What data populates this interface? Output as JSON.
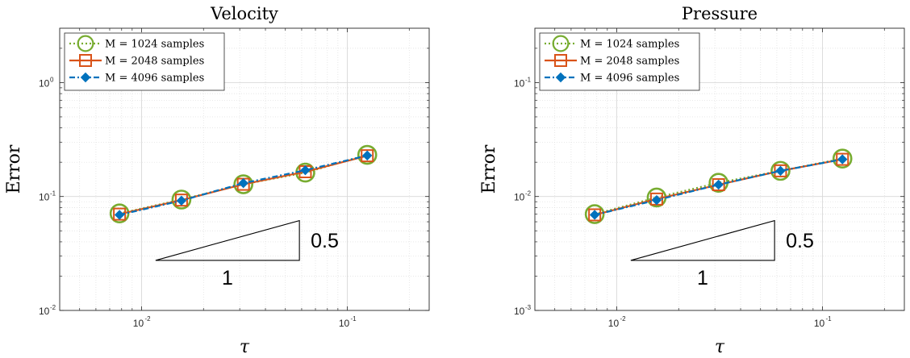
{
  "chart_data": [
    {
      "type": "line",
      "title": "Velocity",
      "xlabel": "τ",
      "ylabel": "Error",
      "xscale": "log",
      "yscale": "log",
      "xlim": [
        0.004,
        0.25
      ],
      "ylim": [
        0.01,
        3
      ],
      "grid": true,
      "legend_position": "top-left",
      "x": [
        0.0078125,
        0.015625,
        0.03125,
        0.0625,
        0.125
      ],
      "series": [
        {
          "name": "M = 1024 samples",
          "color": "#77AC30",
          "linestyle": "dotted",
          "marker": "circle",
          "values": [
            0.071,
            0.094,
            0.128,
            0.162,
            0.232
          ]
        },
        {
          "name": "M = 2048 samples",
          "color": "#D95319",
          "linestyle": "solid",
          "marker": "square",
          "values": [
            0.07,
            0.093,
            0.128,
            0.165,
            0.228
          ]
        },
        {
          "name": "M = 4096 samples",
          "color": "#0072BD",
          "linestyle": "dashdot",
          "marker": "diamond",
          "values": [
            0.069,
            0.092,
            0.131,
            0.17,
            0.229
          ]
        }
      ],
      "xticks": {
        "values": [
          0.01,
          0.1
        ],
        "labels": [
          {
            "base": "10",
            "exp": "-2"
          },
          {
            "base": "10",
            "exp": "-1"
          }
        ]
      },
      "yticks": {
        "values": [
          0.01,
          0.1,
          1
        ],
        "labels": [
          {
            "base": "10",
            "exp": "-2"
          },
          {
            "base": "10",
            "exp": "-1"
          },
          {
            "base": "10",
            "exp": "0"
          }
        ]
      },
      "slope_triangle": {
        "x0": 0.0117,
        "x1": 0.0585,
        "y_base": 0.0275,
        "y_top": 0.0615,
        "run_label": "1",
        "rise_label": "0.5"
      }
    },
    {
      "type": "line",
      "title": "Pressure",
      "xlabel": "τ",
      "ylabel": "Error",
      "xscale": "log",
      "yscale": "log",
      "xlim": [
        0.004,
        0.25
      ],
      "ylim": [
        0.001,
        0.3
      ],
      "grid": true,
      "legend_position": "top-left",
      "x": [
        0.0078125,
        0.015625,
        0.03125,
        0.0625,
        0.125
      ],
      "series": [
        {
          "name": "M = 1024 samples",
          "color": "#77AC30",
          "linestyle": "dotted",
          "marker": "circle",
          "values": [
            0.007,
            0.0098,
            0.0132,
            0.0168,
            0.0215
          ]
        },
        {
          "name": "M = 2048 samples",
          "color": "#D95319",
          "linestyle": "solid",
          "marker": "square",
          "values": [
            0.0069,
            0.0095,
            0.0127,
            0.0168,
            0.0212
          ]
        },
        {
          "name": "M = 4096 samples",
          "color": "#0072BD",
          "linestyle": "dashdot",
          "marker": "diamond",
          "values": [
            0.0069,
            0.0093,
            0.0127,
            0.0168,
            0.0212
          ]
        }
      ],
      "xticks": {
        "values": [
          0.01,
          0.1
        ],
        "labels": [
          {
            "base": "10",
            "exp": "-2"
          },
          {
            "base": "10",
            "exp": "-1"
          }
        ]
      },
      "yticks": {
        "values": [
          0.001,
          0.01,
          0.1
        ],
        "labels": [
          {
            "base": "10",
            "exp": "-3"
          },
          {
            "base": "10",
            "exp": "-2"
          },
          {
            "base": "10",
            "exp": "-1"
          }
        ]
      },
      "slope_triangle": {
        "x0": 0.0117,
        "x1": 0.0585,
        "y_base": 0.00275,
        "y_top": 0.00615,
        "run_label": "1",
        "rise_label": "0.5"
      }
    }
  ]
}
